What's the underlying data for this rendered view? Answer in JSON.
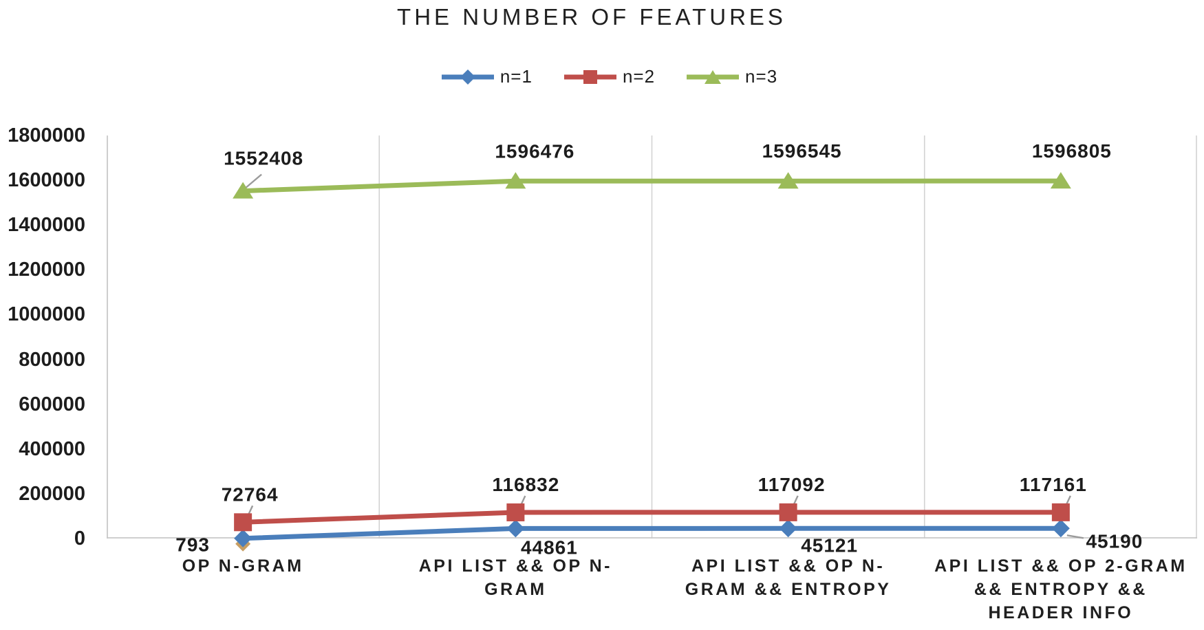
{
  "chart_data": {
    "type": "line",
    "title": "THE NUMBER OF FEATURES",
    "categories": [
      "OP N-GRAM",
      "API LIST && OP N-GRAM",
      "API LIST && OP N-GRAM && ENTROPY",
      "API LIST && OP 2-GRAM && ENTROPY && HEADER INFO"
    ],
    "category_label_lines": [
      [
        "OP N-GRAM"
      ],
      [
        "API LIST && OP N-",
        "GRAM"
      ],
      [
        "API LIST && OP N-",
        "GRAM && ENTROPY"
      ],
      [
        "API LIST && OP 2-GRAM",
        "&& ENTROPY &&",
        "HEADER INFO"
      ]
    ],
    "series": [
      {
        "name": "n=1",
        "marker": "diamond",
        "color": "#4a7ebb",
        "values": [
          793,
          44861,
          45121,
          45190
        ],
        "data_labels": [
          "793",
          "44861",
          "45121",
          "45190"
        ]
      },
      {
        "name": "n=2",
        "marker": "square",
        "color": "#bf4e4a",
        "values": [
          72764,
          116832,
          117092,
          117161
        ],
        "data_labels": [
          "72764",
          "116832",
          "117092",
          "117161"
        ]
      },
      {
        "name": "n=3",
        "marker": "triangle",
        "color": "#9bbb59",
        "values": [
          1552408,
          1596476,
          1596545,
          1596805
        ],
        "data_labels": [
          "1552408",
          "1596476",
          "1596545",
          "1596805"
        ]
      }
    ],
    "ylim": [
      0,
      1800000
    ],
    "ytick_step": 200000,
    "ytick_labels": [
      "0",
      "200000",
      "400000",
      "600000",
      "800000",
      "1000000",
      "1200000",
      "1400000",
      "1600000",
      "1800000"
    ],
    "legend_position": "top",
    "legend_entries": [
      "n=1",
      "n=2",
      "n=3"
    ],
    "grid": "vertical-only",
    "data_labels_shown": true
  },
  "colors": {
    "background": "#ffffff",
    "text": "#1d1d1d",
    "title_text": "#202020",
    "gridline": "#d2d2d2",
    "axis_line": "#c8c8c8",
    "leader_line": "#9b9b9b",
    "ghost_marker": "#c79e63",
    "series_n1": "#4a7ebb",
    "series_n2": "#bf4e4a",
    "series_n3": "#9bbb59"
  }
}
